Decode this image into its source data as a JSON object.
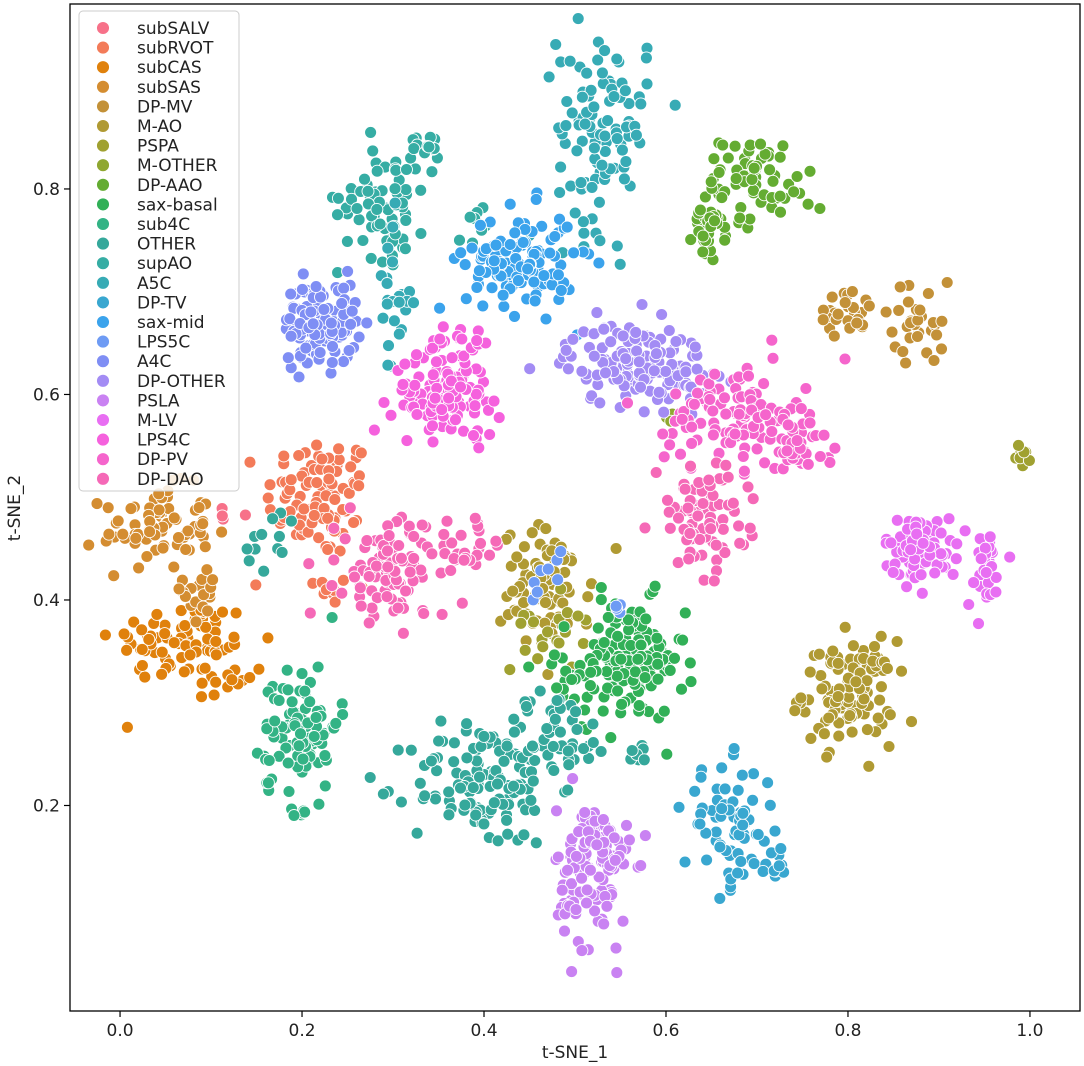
{
  "chart_data": {
    "type": "scatter",
    "xlabel": "t-SNE_1",
    "ylabel": "t-SNE_2",
    "xlim": [
      -0.055,
      1.055
    ],
    "ylim": [
      0.0,
      0.98
    ],
    "x_ticks": [
      0.0,
      0.2,
      0.4,
      0.6,
      0.8,
      1.0
    ],
    "x_tick_labels": [
      "0.0",
      "0.2",
      "0.4",
      "0.6",
      "0.8",
      "1.0"
    ],
    "y_ticks": [
      0.2,
      0.4,
      0.6,
      0.8
    ],
    "y_tick_labels": [
      "0.2",
      "0.4",
      "0.6",
      "0.8"
    ],
    "grid": false,
    "legend_position": "top-left",
    "series": [
      {
        "name": "subSALV",
        "color": "#f77189",
        "clusters": [
          {
            "x": 0.11,
            "y": 0.49,
            "sx": 0.01,
            "sy": 0.01,
            "n": 4
          }
        ]
      },
      {
        "name": "subRVOT",
        "color": "#f37b59",
        "clusters": [
          {
            "x": 0.22,
            "y": 0.5,
            "sx": 0.03,
            "sy": 0.03,
            "n": 90
          },
          {
            "x": 0.23,
            "y": 0.41,
            "sx": 0.02,
            "sy": 0.01,
            "n": 10
          }
        ]
      },
      {
        "name": "subCAS",
        "color": "#e0810c",
        "clusters": [
          {
            "x": 0.07,
            "y": 0.36,
            "sx": 0.04,
            "sy": 0.02,
            "n": 80
          },
          {
            "x": 0.12,
            "y": 0.32,
            "sx": 0.02,
            "sy": 0.01,
            "n": 12
          }
        ]
      },
      {
        "name": "subSAS",
        "color": "#d48d31",
        "clusters": [
          {
            "x": 0.04,
            "y": 0.47,
            "sx": 0.03,
            "sy": 0.02,
            "n": 75
          },
          {
            "x": 0.09,
            "y": 0.41,
            "sx": 0.01,
            "sy": 0.02,
            "n": 20
          }
        ]
      },
      {
        "name": "DP-MV",
        "color": "#c39138",
        "clusters": [
          {
            "x": 0.8,
            "y": 0.68,
            "sx": 0.02,
            "sy": 0.01,
            "n": 28
          },
          {
            "x": 0.88,
            "y": 0.67,
            "sx": 0.015,
            "sy": 0.02,
            "n": 30
          }
        ]
      },
      {
        "name": "M-AO",
        "color": "#b09a33",
        "clusters": [
          {
            "x": 0.8,
            "y": 0.31,
            "sx": 0.025,
            "sy": 0.025,
            "n": 110
          },
          {
            "x": 0.47,
            "y": 0.41,
            "sx": 0.025,
            "sy": 0.03,
            "n": 85
          }
        ]
      },
      {
        "name": "PSPA",
        "color": "#a0a131",
        "clusters": [
          {
            "x": 0.99,
            "y": 0.54,
            "sx": 0.005,
            "sy": 0.005,
            "n": 8
          },
          {
            "x": 0.47,
            "y": 0.37,
            "sx": 0.02,
            "sy": 0.02,
            "n": 20
          }
        ]
      },
      {
        "name": "M-OTHER",
        "color": "#8fa731",
        "clusters": [
          {
            "x": 0.6,
            "y": 0.58,
            "sx": 0.005,
            "sy": 0.005,
            "n": 4
          }
        ]
      },
      {
        "name": "DP-AAO",
        "color": "#64ac32",
        "clusters": [
          {
            "x": 0.65,
            "y": 0.77,
            "sx": 0.01,
            "sy": 0.02,
            "n": 40
          },
          {
            "x": 0.7,
            "y": 0.82,
            "sx": 0.02,
            "sy": 0.015,
            "n": 45
          },
          {
            "x": 0.72,
            "y": 0.78,
            "sx": 0.02,
            "sy": 0.01,
            "n": 12
          }
        ]
      },
      {
        "name": "sax-basal",
        "color": "#31b057",
        "clusters": [
          {
            "x": 0.56,
            "y": 0.34,
            "sx": 0.03,
            "sy": 0.03,
            "n": 140
          },
          {
            "x": 0.5,
            "y": 0.32,
            "sx": 0.02,
            "sy": 0.015,
            "n": 25
          }
        ]
      },
      {
        "name": "sub4C",
        "color": "#33b385",
        "clusters": [
          {
            "x": 0.2,
            "y": 0.28,
            "sx": 0.02,
            "sy": 0.03,
            "n": 85
          },
          {
            "x": 0.2,
            "y": 0.19,
            "sx": 0.005,
            "sy": 0.005,
            "n": 6
          },
          {
            "x": 0.16,
            "y": 0.23,
            "sx": 0.005,
            "sy": 0.01,
            "n": 6
          }
        ]
      },
      {
        "name": "OTHER",
        "color": "#35a89b",
        "clusters": [
          {
            "x": 0.4,
            "y": 0.22,
            "sx": 0.04,
            "sy": 0.03,
            "n": 120
          },
          {
            "x": 0.48,
            "y": 0.27,
            "sx": 0.03,
            "sy": 0.02,
            "n": 50
          },
          {
            "x": 0.17,
            "y": 0.46,
            "sx": 0.02,
            "sy": 0.015,
            "n": 12
          },
          {
            "x": 0.57,
            "y": 0.25,
            "sx": 0.005,
            "sy": 0.005,
            "n": 8
          }
        ]
      },
      {
        "name": "supAO",
        "color": "#36ada4",
        "clusters": [
          {
            "x": 0.29,
            "y": 0.79,
            "sx": 0.025,
            "sy": 0.03,
            "n": 70
          },
          {
            "x": 0.34,
            "y": 0.84,
            "sx": 0.01,
            "sy": 0.01,
            "n": 12
          },
          {
            "x": 0.39,
            "y": 0.77,
            "sx": 0.02,
            "sy": 0.01,
            "n": 8
          }
        ]
      },
      {
        "name": "A5C",
        "color": "#37abb5",
        "clusters": [
          {
            "x": 0.53,
            "y": 0.86,
            "sx": 0.025,
            "sy": 0.05,
            "n": 110
          },
          {
            "x": 0.3,
            "y": 0.69,
            "sx": 0.01,
            "sy": 0.04,
            "n": 25
          }
        ]
      },
      {
        "name": "DP-TV",
        "color": "#39a7d0",
        "clusters": [
          {
            "x": 0.67,
            "y": 0.18,
            "sx": 0.025,
            "sy": 0.03,
            "n": 70
          },
          {
            "x": 0.72,
            "y": 0.14,
            "sx": 0.008,
            "sy": 0.01,
            "n": 10
          }
        ]
      },
      {
        "name": "sax-mid",
        "color": "#3ba3ec",
        "clusters": [
          {
            "x": 0.44,
            "y": 0.73,
            "sx": 0.03,
            "sy": 0.025,
            "n": 120
          }
        ]
      },
      {
        "name": "LPS5C",
        "color": "#6e9bf4",
        "clusters": [
          {
            "x": 0.47,
            "y": 0.42,
            "sx": 0.015,
            "sy": 0.015,
            "n": 8
          },
          {
            "x": 0.55,
            "y": 0.39,
            "sx": 0.01,
            "sy": 0.005,
            "n": 4
          }
        ]
      },
      {
        "name": "A4C",
        "color": "#7f8ef4",
        "clusters": [
          {
            "x": 0.22,
            "y": 0.67,
            "sx": 0.02,
            "sy": 0.02,
            "n": 140
          }
        ]
      },
      {
        "name": "DP-OTHER",
        "color": "#a38cf4",
        "clusters": [
          {
            "x": 0.57,
            "y": 0.63,
            "sx": 0.04,
            "sy": 0.02,
            "n": 150
          }
        ]
      },
      {
        "name": "PSLA",
        "color": "#c982f2",
        "clusters": [
          {
            "x": 0.52,
            "y": 0.13,
            "sx": 0.02,
            "sy": 0.035,
            "n": 110
          },
          {
            "x": 0.52,
            "y": 0.18,
            "sx": 0.01,
            "sy": 0.015,
            "n": 20
          }
        ]
      },
      {
        "name": "M-LV",
        "color": "#e86ef2",
        "clusters": [
          {
            "x": 0.88,
            "y": 0.45,
            "sx": 0.02,
            "sy": 0.015,
            "n": 90
          },
          {
            "x": 0.95,
            "y": 0.43,
            "sx": 0.01,
            "sy": 0.02,
            "n": 30
          }
        ]
      },
      {
        "name": "LPS4C",
        "color": "#f561dd",
        "clusters": [
          {
            "x": 0.36,
            "y": 0.6,
            "sx": 0.03,
            "sy": 0.02,
            "n": 110
          },
          {
            "x": 0.37,
            "y": 0.65,
            "sx": 0.015,
            "sy": 0.01,
            "n": 20
          }
        ]
      },
      {
        "name": "DP-PV",
        "color": "#f565cc",
        "clusters": [
          {
            "x": 0.67,
            "y": 0.58,
            "sx": 0.035,
            "sy": 0.025,
            "n": 100
          },
          {
            "x": 0.74,
            "y": 0.55,
            "sx": 0.02,
            "sy": 0.02,
            "n": 45
          }
        ]
      },
      {
        "name": "DP-DAO",
        "color": "#f569b7",
        "clusters": [
          {
            "x": 0.3,
            "y": 0.43,
            "sx": 0.03,
            "sy": 0.025,
            "n": 110
          },
          {
            "x": 0.38,
            "y": 0.45,
            "sx": 0.02,
            "sy": 0.015,
            "n": 20
          },
          {
            "x": 0.64,
            "y": 0.48,
            "sx": 0.025,
            "sy": 0.025,
            "n": 90
          }
        ]
      }
    ]
  }
}
